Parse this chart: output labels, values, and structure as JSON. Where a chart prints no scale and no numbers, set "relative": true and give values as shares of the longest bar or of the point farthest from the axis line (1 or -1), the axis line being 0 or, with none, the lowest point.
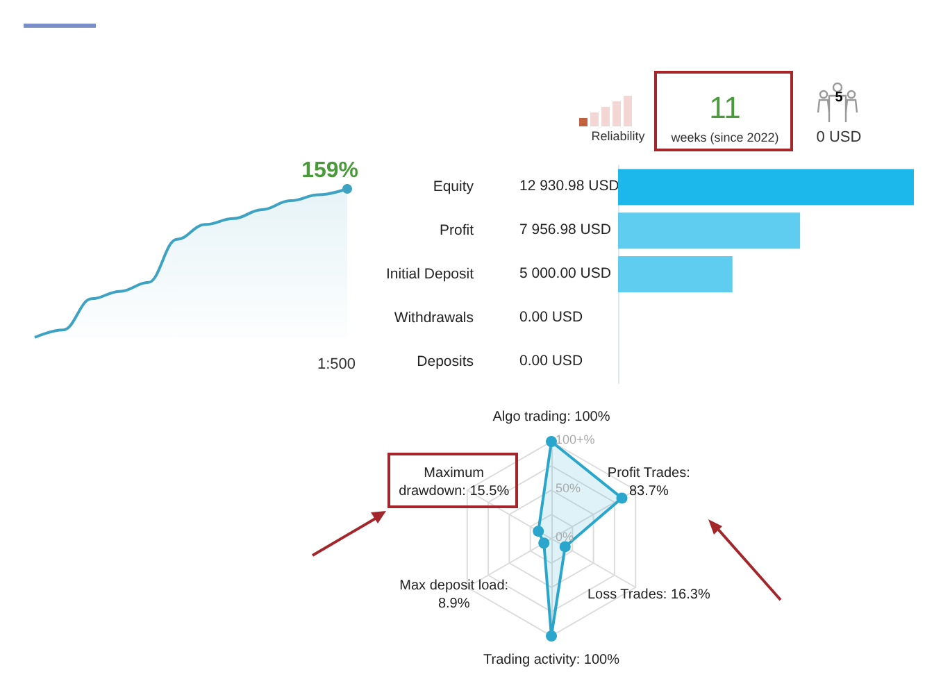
{
  "chart_data": [
    {
      "type": "other",
      "annotations": [
        "Reliability",
        "11",
        "weeks (since 2022)",
        "5",
        "0 USD"
      ]
    },
    {
      "type": "area",
      "relative": true,
      "categories": [
        null,
        null,
        null,
        null,
        null,
        null,
        null,
        null,
        null,
        null,
        null,
        null
      ],
      "series": [
        {
          "color": "#3ea3c2",
          "values": [
            0,
            0.05,
            0.26,
            0.31,
            0.37,
            0.66,
            0.76,
            0.8,
            0.86,
            0.92,
            0.96,
            1
          ]
        }
      ],
      "annotations": [
        "159%",
        "1:500"
      ]
    },
    {
      "type": "bar",
      "orientation": "horizontal",
      "categories": [
        "Equity",
        "Profit",
        "Initial Deposit",
        "Withdrawals",
        "Deposits"
      ],
      "values": [
        12930.98,
        7956.98,
        5000,
        0,
        0
      ],
      "colors": [
        "#1cb8ec",
        "#5fcdf0",
        "#5fcdf0",
        "#5fcdf0",
        "#5fcdf0"
      ],
      "value_labels": [
        "12 930.98 USD",
        "7 956.98 USD",
        "5 000.00 USD",
        "0.00 USD",
        "0.00 USD"
      ],
      "tick_labels": "y"
    },
    {
      "type": "radar",
      "categories": [
        "Algo trading: 100%",
        "Profit Trades:\n83.7%",
        "Loss Trades: 16.3%",
        "Trading activity: 100%",
        "Max deposit load:\n8.9%",
        "Maximum\ndrawdown: 15.5%"
      ],
      "series": [
        {
          "color": "#2aa6cc",
          "values": [
            100,
            83.7,
            16.3,
            100,
            8.9,
            15.5
          ]
        }
      ],
      "ylim": [
        0,
        100
      ],
      "yticks": [
        {
          "value": 0,
          "label": "0%"
        },
        {
          "value": 50,
          "label": "50%"
        },
        {
          "value": 100,
          "label": "100+%"
        }
      ],
      "marker": "circle"
    }
  ]
}
